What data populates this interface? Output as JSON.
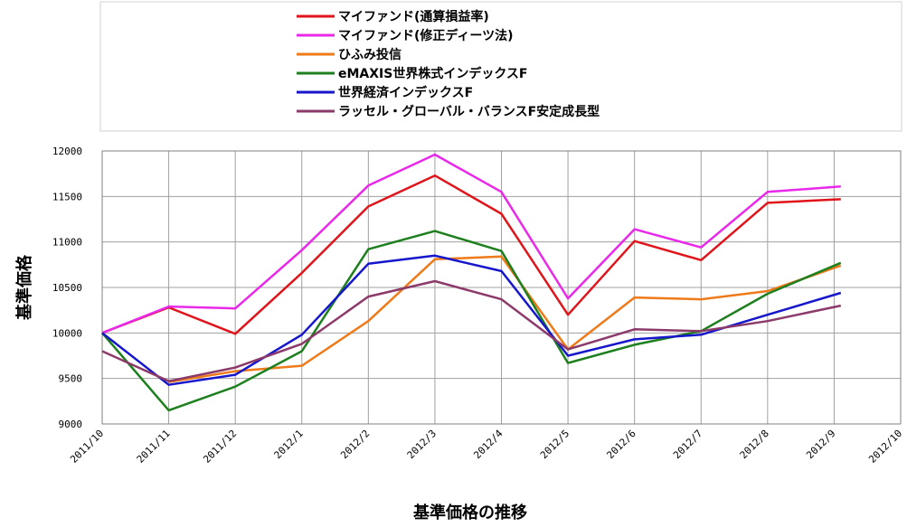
{
  "chart_data": {
    "type": "line",
    "title": "",
    "xlabel": "基準価格の推移",
    "ylabel": "基準価格",
    "ylim": [
      9000,
      12000
    ],
    "yticks": [
      9000,
      9500,
      10000,
      10500,
      11000,
      11500,
      12000
    ],
    "ytick_labels": [
      "9000",
      "9500",
      "10000",
      "10500",
      "11000",
      "11500",
      "12000"
    ],
    "categories": [
      "2011/10",
      "2011/11",
      "2011/12",
      "2012/1",
      "2012/2",
      "2012/3",
      "2012/4",
      "2012/5",
      "2012/6",
      "2012/7",
      "2012/8",
      "2012/9",
      "2012/10"
    ],
    "grid": true,
    "legend_position": "top",
    "series": [
      {
        "name": "マイファンド(通算損益率)",
        "color": "#e0141b",
        "x": [
          0,
          1,
          2,
          3,
          4,
          5,
          6,
          7,
          8,
          9,
          10,
          11.1
        ],
        "values": [
          10000,
          10280,
          9990,
          10660,
          11390,
          11730,
          11310,
          10200,
          11010,
          10800,
          11430,
          11470
        ]
      },
      {
        "name": "マイファンド(修正ディーツ法)",
        "color": "#ea28ea",
        "x": [
          0,
          1,
          2,
          3,
          4,
          5,
          6,
          7,
          8,
          9,
          10,
          11.1
        ],
        "values": [
          10000,
          10290,
          10270,
          10910,
          11620,
          11960,
          11550,
          10380,
          11140,
          10940,
          11550,
          11610
        ]
      },
      {
        "name": "ひふみ投信",
        "color": "#ee7a1a",
        "x": [
          1,
          2,
          3,
          4,
          5,
          6,
          7,
          8,
          9,
          10,
          11.1
        ],
        "values": [
          9460,
          9580,
          9640,
          10130,
          10810,
          10840,
          9820,
          10390,
          10370,
          10460,
          10740
        ]
      },
      {
        "name": "eMAXIS世界株式インデックスF",
        "color": "#1d7f1d",
        "x": [
          0,
          1,
          2,
          3,
          4,
          5,
          6,
          7,
          8,
          9,
          10,
          11.1
        ],
        "values": [
          10000,
          9150,
          9410,
          9800,
          10920,
          11120,
          10900,
          9670,
          9870,
          10020,
          10430,
          10770
        ]
      },
      {
        "name": "世界経済インデックスF",
        "color": "#1616cc",
        "x": [
          0,
          1,
          2,
          3,
          4,
          5,
          6,
          7,
          8,
          9,
          10,
          11.1
        ],
        "values": [
          10000,
          9430,
          9540,
          9980,
          10760,
          10850,
          10680,
          9750,
          9930,
          9980,
          10200,
          10440
        ]
      },
      {
        "name": "ラッセル・グローバル・バランスF安定成長型",
        "color": "#8c3a6a",
        "x": [
          0,
          1,
          2,
          3,
          4,
          5,
          6,
          7,
          8,
          9,
          10,
          11.1
        ],
        "values": [
          9800,
          9470,
          9620,
          9880,
          10400,
          10570,
          10370,
          9820,
          10040,
          10020,
          10130,
          10300
        ]
      }
    ]
  }
}
